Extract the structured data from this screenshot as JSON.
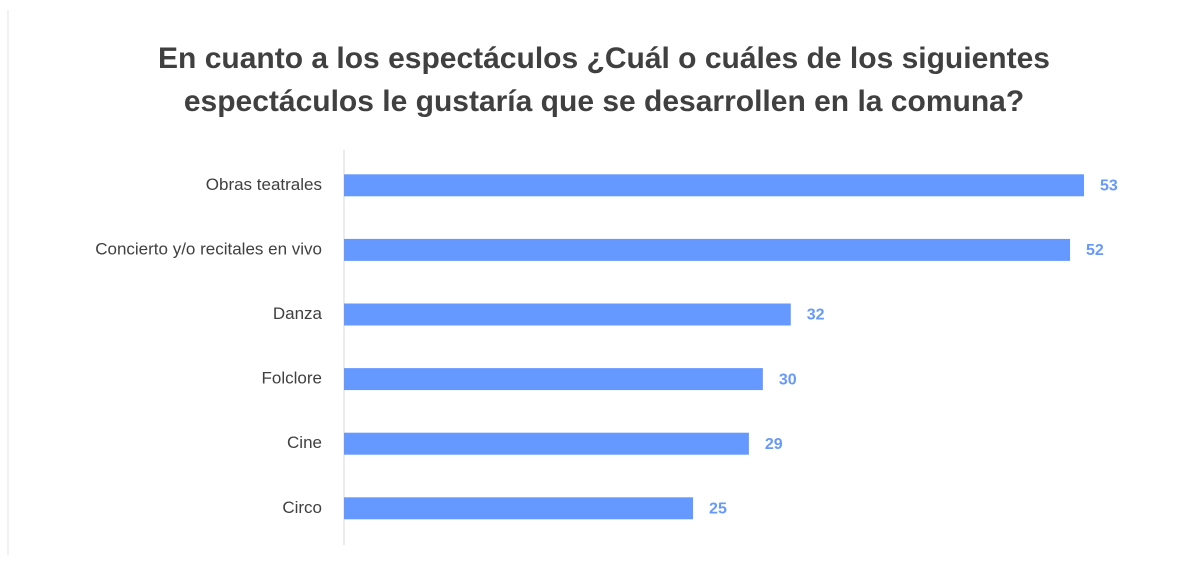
{
  "chart_data": {
    "type": "bar",
    "orientation": "horizontal",
    "title": [
      "En cuanto a los espectáculos ¿Cuál o cuáles de los siguientes",
      "espectáculos le gustaría que se desarrollen en la comuna?"
    ],
    "categories": [
      "Obras teatrales",
      "Concierto y/o recitales en vivo",
      "Danza",
      "Folclore",
      "Cine",
      "Circo"
    ],
    "values": [
      53,
      52,
      32,
      30,
      29,
      25
    ],
    "color": "#6699ff"
  }
}
